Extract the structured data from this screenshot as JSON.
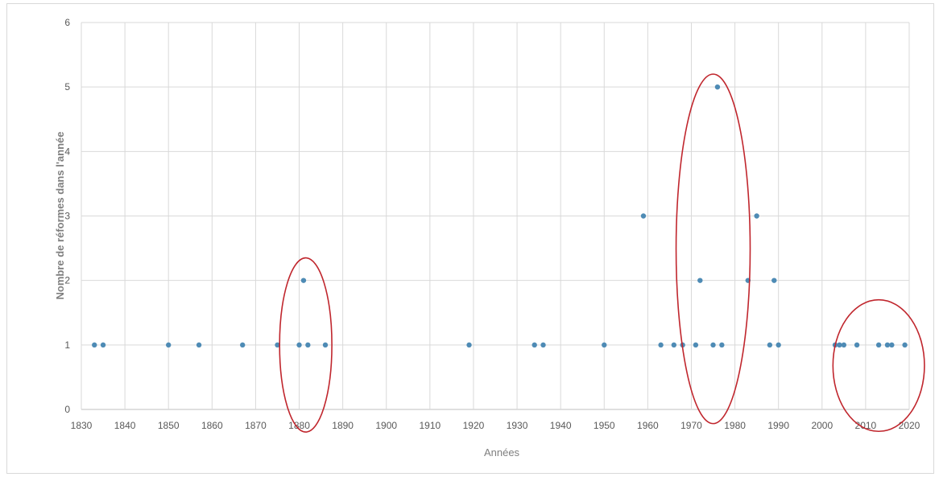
{
  "chart_data": {
    "type": "scatter",
    "title": "",
    "xlabel": "Années",
    "ylabel": "Nombre de réformes dans l'année",
    "xlim": [
      1830,
      2020
    ],
    "ylim": [
      0,
      6
    ],
    "x_ticks": [
      1830,
      1840,
      1850,
      1860,
      1870,
      1880,
      1890,
      1900,
      1910,
      1920,
      1930,
      1940,
      1950,
      1960,
      1970,
      1980,
      1990,
      2000,
      2010,
      2020
    ],
    "y_ticks": [
      0,
      1,
      2,
      3,
      4,
      5,
      6
    ],
    "grid": true,
    "legend": "none",
    "series": [
      {
        "color": "#4e8bb5",
        "points": [
          {
            "x": 1833,
            "y": 1
          },
          {
            "x": 1835,
            "y": 1
          },
          {
            "x": 1850,
            "y": 1
          },
          {
            "x": 1857,
            "y": 1
          },
          {
            "x": 1867,
            "y": 1
          },
          {
            "x": 1875,
            "y": 1
          },
          {
            "x": 1880,
            "y": 1
          },
          {
            "x": 1881,
            "y": 2
          },
          {
            "x": 1882,
            "y": 1
          },
          {
            "x": 1886,
            "y": 1
          },
          {
            "x": 1919,
            "y": 1
          },
          {
            "x": 1934,
            "y": 1
          },
          {
            "x": 1936,
            "y": 1
          },
          {
            "x": 1950,
            "y": 1
          },
          {
            "x": 1959,
            "y": 3
          },
          {
            "x": 1963,
            "y": 1
          },
          {
            "x": 1966,
            "y": 1
          },
          {
            "x": 1968,
            "y": 1
          },
          {
            "x": 1971,
            "y": 1
          },
          {
            "x": 1972,
            "y": 2
          },
          {
            "x": 1975,
            "y": 1
          },
          {
            "x": 1976,
            "y": 5
          },
          {
            "x": 1977,
            "y": 1
          },
          {
            "x": 1983,
            "y": 2
          },
          {
            "x": 1985,
            "y": 3
          },
          {
            "x": 1988,
            "y": 1
          },
          {
            "x": 1989,
            "y": 2
          },
          {
            "x": 1990,
            "y": 1
          },
          {
            "x": 2003,
            "y": 1
          },
          {
            "x": 2004,
            "y": 1
          },
          {
            "x": 2005,
            "y": 1
          },
          {
            "x": 2008,
            "y": 1
          },
          {
            "x": 2013,
            "y": 1
          },
          {
            "x": 2015,
            "y": 1
          },
          {
            "x": 2016,
            "y": 1
          },
          {
            "x": 2019,
            "y": 1
          }
        ]
      }
    ],
    "annotations": [
      {
        "type": "ellipse",
        "color": "#c0262d",
        "x_center": 1881.5,
        "x_range": [
          1875.5,
          1887.5
        ],
        "y_range": [
          -0.35,
          2.35
        ]
      },
      {
        "type": "ellipse",
        "color": "#c0262d",
        "x_center": 1975.0,
        "x_range": [
          1966.5,
          1983.5
        ],
        "y_range": [
          -0.22,
          5.2
        ]
      },
      {
        "type": "ellipse",
        "color": "#c0262d",
        "x_center": 2013.0,
        "x_range": [
          2002.5,
          2023.5
        ],
        "y_range": [
          -0.34,
          1.7
        ]
      }
    ]
  }
}
